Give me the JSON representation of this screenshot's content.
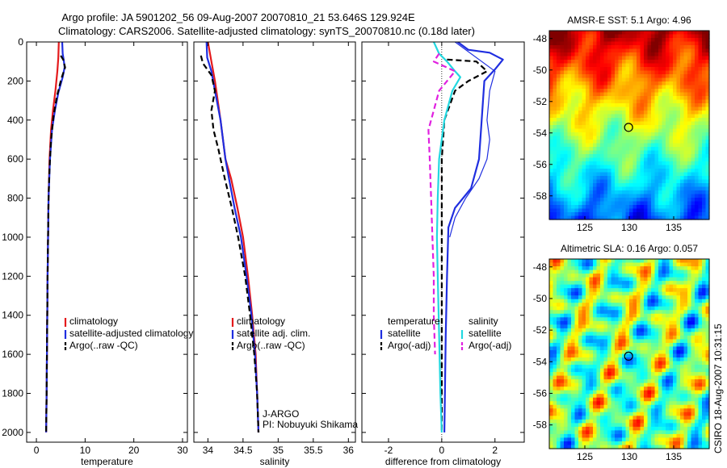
{
  "title": {
    "line1": "Argo profile: JA 5901202_56 09-Aug-2007 20070810_21 53.646S 129.924E",
    "line2": "Climatology: CARS2006. Satellite-adjusted climatology: synTS_20070810.nc (0.18d later)"
  },
  "credit": "CSIRO 18-Aug-2007 10:31:15",
  "colors": {
    "clim": "#e41a1c",
    "sat": "#1f2ee0",
    "argo": "#000000",
    "cyan": "#22d8e0",
    "magenta": "#e020e0"
  },
  "chart_data": [
    {
      "type": "line",
      "id": "temperature",
      "xlabel": "temperature",
      "ylabel": "",
      "xlim": [
        -2,
        31
      ],
      "ylim": [
        0,
        2050
      ],
      "y_reversed": true,
      "xticks": [
        0,
        10,
        20,
        30
      ],
      "yticks": [
        0,
        200,
        400,
        600,
        800,
        1000,
        1200,
        1400,
        1600,
        1800,
        2000
      ],
      "legend": {
        "placement": "lower-right",
        "entries": [
          "climatology",
          "satellite-adjusted climatology",
          "Argo(..raw -QC)"
        ]
      },
      "series": [
        {
          "name": "climatology",
          "color_key": "clim",
          "dashed": false,
          "points": [
            [
              4.6,
              0
            ],
            [
              4.5,
              80
            ],
            [
              4.3,
              150
            ],
            [
              3.9,
              250
            ],
            [
              3.4,
              350
            ],
            [
              3.0,
              450
            ],
            [
              2.7,
              600
            ],
            [
              2.5,
              800
            ],
            [
              2.4,
              1000
            ],
            [
              2.3,
              1200
            ],
            [
              2.2,
              1500
            ],
            [
              2.1,
              1800
            ],
            [
              2.0,
              2000
            ]
          ]
        },
        {
          "name": "satellite-adjusted climatology",
          "color_key": "sat",
          "dashed": false,
          "points": [
            [
              5.3,
              0
            ],
            [
              5.4,
              60
            ],
            [
              5.6,
              90
            ],
            [
              5.8,
              130
            ],
            [
              5.4,
              180
            ],
            [
              4.5,
              260
            ],
            [
              3.8,
              350
            ],
            [
              3.2,
              450
            ],
            [
              2.8,
              600
            ],
            [
              2.5,
              800
            ],
            [
              2.4,
              1000
            ],
            [
              2.3,
              1200
            ],
            [
              2.2,
              1500
            ],
            [
              2.1,
              1800
            ],
            [
              2.0,
              2000
            ]
          ]
        },
        {
          "name": "Argo(..raw -QC)",
          "color_key": "argo",
          "dashed": true,
          "points": [
            [
              5.0,
              70
            ],
            [
              5.5,
              90
            ],
            [
              5.9,
              130
            ],
            [
              5.1,
              190
            ],
            [
              4.2,
              280
            ],
            [
              3.5,
              380
            ],
            [
              3.0,
              500
            ],
            [
              2.7,
              650
            ],
            [
              2.5,
              800
            ],
            [
              2.4,
              1000
            ],
            [
              2.3,
              1200
            ],
            [
              2.2,
              1500
            ],
            [
              2.1,
              1800
            ],
            [
              2.0,
              2000
            ]
          ]
        }
      ]
    },
    {
      "type": "line",
      "id": "salinity",
      "xlabel": "salinity",
      "ylabel": "",
      "xlim": [
        33.8,
        36.1
      ],
      "ylim": [
        0,
        2050
      ],
      "y_reversed": true,
      "xticks": [
        34,
        34.5,
        35,
        35.5,
        36
      ],
      "yticks": [
        0,
        200,
        400,
        600,
        800,
        1000,
        1200,
        1400,
        1600,
        1800,
        2000
      ],
      "legend": {
        "placement": "lower-right",
        "entries": [
          "climatology",
          "satellite adj. clim.",
          "Argo(..raw -QC)"
        ]
      },
      "annotation": [
        "J-ARGO",
        "PI: Nobuyuki Shikama"
      ],
      "series": [
        {
          "name": "climatology",
          "color_key": "clim",
          "dashed": false,
          "points": [
            [
              34.0,
              0
            ],
            [
              34.05,
              100
            ],
            [
              34.1,
              200
            ],
            [
              34.18,
              400
            ],
            [
              34.25,
              600
            ],
            [
              34.33,
              700
            ],
            [
              34.42,
              850
            ],
            [
              34.5,
              1000
            ],
            [
              34.57,
              1200
            ],
            [
              34.63,
              1400
            ],
            [
              34.68,
              1600
            ],
            [
              34.7,
              1800
            ],
            [
              34.72,
              2000
            ]
          ]
        },
        {
          "name": "satellite adj. clim.",
          "color_key": "sat",
          "dashed": false,
          "points": [
            [
              33.98,
              0
            ],
            [
              33.99,
              80
            ],
            [
              34.05,
              150
            ],
            [
              34.1,
              250
            ],
            [
              34.18,
              400
            ],
            [
              34.25,
              600
            ],
            [
              34.3,
              700
            ],
            [
              34.38,
              850
            ],
            [
              34.47,
              1000
            ],
            [
              34.55,
              1200
            ],
            [
              34.62,
              1400
            ],
            [
              34.67,
              1600
            ],
            [
              34.7,
              1800
            ],
            [
              34.72,
              2000
            ]
          ]
        },
        {
          "name": "Argo(..raw -QC)",
          "color_key": "argo",
          "dashed": true,
          "points": [
            [
              33.9,
              70
            ],
            [
              33.93,
              110
            ],
            [
              34.05,
              170
            ],
            [
              34.1,
              250
            ],
            [
              34.05,
              350
            ],
            [
              34.08,
              450
            ],
            [
              34.15,
              550
            ],
            [
              34.24,
              700
            ],
            [
              34.34,
              850
            ],
            [
              34.43,
              1000
            ],
            [
              34.53,
              1200
            ],
            [
              34.6,
              1400
            ],
            [
              34.66,
              1600
            ],
            [
              34.7,
              1800
            ],
            [
              34.72,
              2000
            ]
          ]
        }
      ]
    },
    {
      "type": "line",
      "id": "difference",
      "xlabel": "difference from climatology",
      "ylabel": "",
      "xlim": [
        -3,
        3.1
      ],
      "ylim": [
        0,
        2050
      ],
      "y_reversed": true,
      "xticks": [
        -2,
        0,
        2
      ],
      "yticks": [
        0,
        200,
        400,
        600,
        800,
        1000,
        1200,
        1400,
        1600,
        1800,
        2000
      ],
      "legend": {
        "placement": "lower-right",
        "columns": [
          {
            "header": "temperature",
            "entries": [
              "satellite",
              "Argo(-adj)"
            ]
          },
          {
            "header": "salinity",
            "entries": [
              "satellite",
              "Argo(-adj)"
            ]
          }
        ]
      },
      "series": [
        {
          "name": "temperature satellite",
          "color_key": "sat",
          "dashed": false,
          "points": [
            [
              0.6,
              0
            ],
            [
              1.0,
              40
            ],
            [
              1.8,
              55
            ],
            [
              2.3,
              90
            ],
            [
              2.0,
              140
            ],
            [
              1.6,
              200
            ],
            [
              1.5,
              400
            ],
            [
              1.4,
              600
            ],
            [
              1.1,
              750
            ],
            [
              0.5,
              850
            ],
            [
              0.25,
              950
            ],
            [
              0.2,
              1200
            ],
            [
              0.15,
              1500
            ],
            [
              0.12,
              1800
            ],
            [
              0.1,
              2000
            ]
          ]
        },
        {
          "name": "temperature Argo(-adj)",
          "color_key": "argo",
          "dashed": true,
          "points": [
            [
              0.2,
              90
            ],
            [
              1.3,
              100
            ],
            [
              1.7,
              150
            ],
            [
              1.0,
              200
            ],
            [
              0.5,
              250
            ],
            [
              0.1,
              400
            ],
            [
              0.0,
              600
            ],
            [
              0.0,
              800
            ],
            [
              0.0,
              1000
            ],
            [
              0.0,
              1500
            ],
            [
              0.0,
              2000
            ]
          ]
        },
        {
          "name": "salinity satellite",
          "color_key": "cyan",
          "dashed": false,
          "points": [
            [
              -0.3,
              0
            ],
            [
              -0.1,
              60
            ],
            [
              0.2,
              100
            ],
            [
              0.5,
              150
            ],
            [
              0.7,
              180
            ],
            [
              0.4,
              250
            ],
            [
              0.1,
              400
            ],
            [
              -0.1,
              600
            ],
            [
              -0.15,
              800
            ],
            [
              -0.18,
              1000
            ],
            [
              -0.15,
              1200
            ],
            [
              -0.1,
              1500
            ],
            [
              -0.05,
              1800
            ],
            [
              0.0,
              2000
            ]
          ]
        },
        {
          "name": "salinity Argo(-adj)",
          "color_key": "magenta",
          "dashed": true,
          "points": [
            [
              -0.1,
              60
            ],
            [
              -0.3,
              100
            ],
            [
              0.5,
              150
            ],
            [
              -0.1,
              250
            ],
            [
              -0.3,
              350
            ],
            [
              -0.5,
              450
            ],
            [
              -0.45,
              600
            ],
            [
              -0.4,
              800
            ],
            [
              -0.35,
              1000
            ],
            [
              -0.3,
              1200
            ],
            [
              -0.3,
              1400
            ],
            [
              -0.25,
              1600
            ]
          ]
        },
        {
          "name": "temperature satellite (outer)",
          "color_key": "sat",
          "dashed": false,
          "thin": true,
          "points": [
            [
              0.5,
              0
            ],
            [
              1.5,
              100
            ],
            [
              2.0,
              150
            ],
            [
              1.8,
              250
            ],
            [
              1.7,
              400
            ],
            [
              1.8,
              500
            ],
            [
              1.7,
              600
            ],
            [
              1.4,
              700
            ],
            [
              0.9,
              800
            ],
            [
              0.5,
              900
            ],
            [
              0.3,
              1000
            ]
          ]
        }
      ]
    },
    {
      "type": "heatmap",
      "id": "sst-map",
      "title": "AMSR-E SST: 5.1 Argo: 4.96",
      "xlim": [
        121,
        139
      ],
      "ylim": [
        -59.5,
        -47.5
      ],
      "xticks": [
        125,
        130,
        135
      ],
      "yticks": [
        -48,
        -50,
        -52,
        -54,
        -56,
        -58
      ],
      "marker": {
        "lon": 129.924,
        "lat": -53.646
      },
      "field": "sst"
    },
    {
      "type": "heatmap",
      "id": "sla-map",
      "title": "Altimetric SLA: 0.16 Argo: 0.057",
      "xlim": [
        121,
        139
      ],
      "ylim": [
        -59.5,
        -47.5
      ],
      "xticks": [
        125,
        130,
        135
      ],
      "yticks": [
        -48,
        -50,
        -52,
        -54,
        -56,
        -58
      ],
      "marker": {
        "lon": 129.924,
        "lat": -53.646
      },
      "field": "sla"
    }
  ]
}
